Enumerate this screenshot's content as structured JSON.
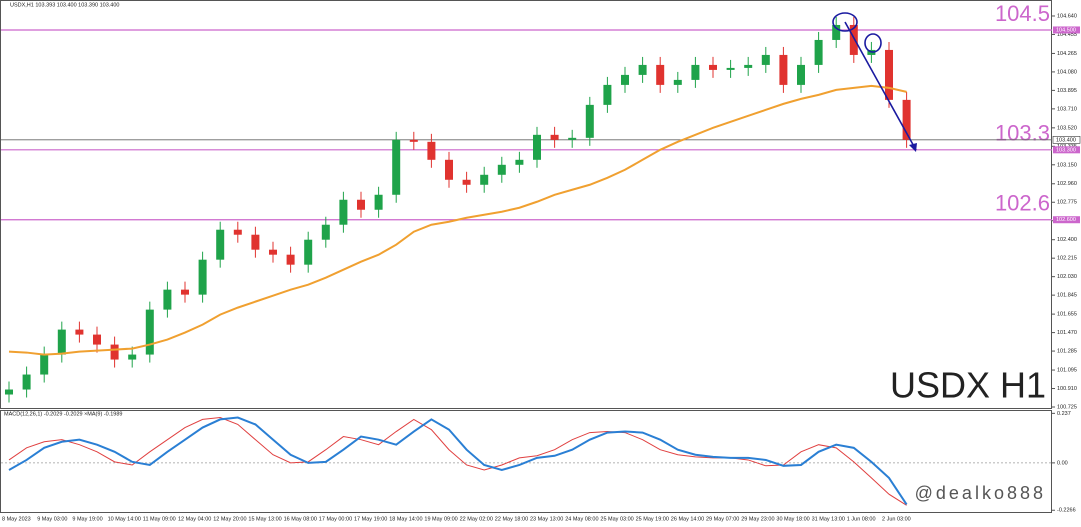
{
  "chart_data": [
    {
      "type": "candlestick",
      "title": "USDX,H1  103.393 103.400 103.390 103.400",
      "watermark": "USDX H1",
      "categories": [
        "8 May 2023",
        null,
        "9 May 03:00",
        null,
        "9 May 19:00",
        null,
        "10 May 14:00",
        null,
        "11 May 09:00",
        null,
        "12 May 04:00",
        null,
        "12 May 20:00",
        null,
        "15 May 13:00",
        null,
        "16 May 08:00",
        null,
        "17 May 00:00",
        null,
        "17 May 19:00",
        null,
        "18 May 14:00",
        null,
        "19 May 09:00",
        null,
        "22 May 02:00",
        null,
        "22 May 18:00",
        null,
        "23 May 13:00",
        null,
        "24 May 08:00",
        null,
        "25 May 03:00",
        null,
        "25 May 19:00",
        null,
        "26 May 14:00",
        null,
        "29 May 07:00",
        null,
        "29 May 23:00",
        null,
        "30 May 18:00",
        null,
        "31 May 13:00",
        null,
        "1 Jun 08:00",
        null,
        "2 Jun 03:00",
        null
      ],
      "open": [
        100.85,
        100.9,
        101.05,
        101.25,
        101.5,
        101.45,
        101.35,
        101.2,
        101.25,
        101.7,
        101.9,
        101.85,
        102.2,
        102.5,
        102.45,
        102.3,
        102.25,
        102.15,
        102.4,
        102.55,
        102.8,
        102.7,
        102.85,
        103.4,
        103.38,
        103.2,
        103.0,
        102.95,
        103.05,
        103.15,
        103.2,
        103.45,
        103.4,
        103.42,
        103.75,
        103.95,
        104.05,
        104.15,
        103.95,
        104.0,
        104.15,
        104.1,
        104.12,
        104.15,
        104.25,
        103.95,
        104.15,
        104.4,
        104.55,
        104.25,
        104.3,
        103.8
      ],
      "high": [
        100.98,
        101.13,
        101.33,
        101.58,
        101.58,
        101.53,
        101.43,
        101.33,
        101.78,
        101.98,
        101.98,
        102.28,
        102.58,
        102.58,
        102.53,
        102.38,
        102.33,
        102.48,
        102.63,
        102.88,
        102.88,
        102.93,
        103.48,
        103.48,
        103.46,
        103.28,
        103.08,
        103.13,
        103.23,
        103.28,
        103.53,
        103.53,
        103.5,
        103.83,
        104.03,
        104.13,
        104.23,
        104.23,
        104.08,
        104.23,
        104.23,
        104.2,
        104.23,
        104.33,
        104.33,
        104.23,
        104.48,
        104.63,
        104.63,
        104.38,
        104.38,
        103.88
      ],
      "low": [
        100.77,
        100.82,
        100.97,
        101.17,
        101.37,
        101.27,
        101.12,
        101.12,
        101.17,
        101.62,
        101.77,
        101.77,
        102.12,
        102.37,
        102.22,
        102.17,
        102.07,
        102.07,
        102.32,
        102.47,
        102.62,
        102.62,
        102.77,
        103.3,
        103.12,
        102.92,
        102.87,
        102.87,
        102.97,
        103.07,
        103.12,
        103.32,
        103.32,
        103.34,
        103.67,
        103.87,
        103.97,
        103.87,
        103.87,
        103.92,
        104.02,
        104.02,
        104.04,
        104.07,
        103.87,
        103.87,
        104.07,
        104.32,
        104.17,
        104.17,
        103.72,
        103.32
      ],
      "close": [
        100.9,
        101.05,
        101.25,
        101.5,
        101.45,
        101.35,
        101.2,
        101.25,
        101.7,
        101.9,
        101.85,
        102.2,
        102.5,
        102.45,
        102.3,
        102.25,
        102.15,
        102.4,
        102.55,
        102.8,
        102.7,
        102.85,
        103.4,
        103.38,
        103.2,
        103.0,
        102.95,
        103.05,
        103.15,
        103.2,
        103.45,
        103.4,
        103.42,
        103.75,
        103.95,
        104.05,
        104.15,
        103.95,
        104.0,
        104.15,
        104.1,
        104.12,
        104.15,
        104.25,
        103.95,
        104.15,
        104.4,
        104.55,
        104.25,
        104.3,
        103.8,
        103.4
      ],
      "up_color": "#1fa34a",
      "down_color": "#e0332f",
      "ma": {
        "color": "#f0a030",
        "values": [
          101.28,
          101.27,
          101.25,
          101.26,
          101.28,
          101.29,
          101.3,
          101.31,
          101.35,
          101.4,
          101.47,
          101.55,
          101.65,
          101.72,
          101.78,
          101.84,
          101.9,
          101.95,
          102.02,
          102.1,
          102.18,
          102.25,
          102.35,
          102.48,
          102.55,
          102.58,
          102.62,
          102.65,
          102.68,
          102.72,
          102.78,
          102.85,
          102.9,
          102.95,
          103.02,
          103.1,
          103.2,
          103.3,
          103.38,
          103.45,
          103.52,
          103.58,
          103.64,
          103.7,
          103.76,
          103.81,
          103.85,
          103.9,
          103.92,
          103.94,
          103.92,
          103.88
        ]
      },
      "levels": {
        "color": "#cc66cc",
        "values": [
          104.5,
          103.3,
          102.6
        ],
        "value_labels": [
          "104.500",
          "103.300",
          "102.600"
        ]
      },
      "last_price": {
        "value": 103.4,
        "label": "103.400"
      },
      "ylim": [
        100.715,
        104.8
      ],
      "yticks": [
        {
          "value": 104.64,
          "label": "104.640"
        },
        {
          "value": 104.455,
          "label": "104.455"
        },
        {
          "value": 104.265,
          "label": "104.265"
        },
        {
          "value": 104.08,
          "label": "104.080"
        },
        {
          "value": 103.895,
          "label": "103.895"
        },
        {
          "value": 103.71,
          "label": "103.710"
        },
        {
          "value": 103.52,
          "label": "103.520"
        },
        {
          "value": 103.335,
          "label": "103.335"
        },
        {
          "value": 103.15,
          "label": "103.150"
        },
        {
          "value": 102.96,
          "label": "102.960"
        },
        {
          "value": 102.775,
          "label": "102.775"
        },
        {
          "value": 102.59,
          "label": "102.590"
        },
        {
          "value": 102.4,
          "label": "102.400"
        },
        {
          "value": 102.215,
          "label": "102.215"
        },
        {
          "value": 102.03,
          "label": "102.030"
        },
        {
          "value": 101.845,
          "label": "101.845"
        },
        {
          "value": 101.655,
          "label": "101.655"
        },
        {
          "value": 101.47,
          "label": "101.470"
        },
        {
          "value": 101.285,
          "label": "101.285"
        },
        {
          "value": 101.095,
          "label": "101.095"
        },
        {
          "value": 100.91,
          "label": "100.910"
        },
        {
          "value": 100.725,
          "label": "100.725"
        }
      ]
    },
    {
      "type": "macd",
      "title": "MACD(12,26,1) -0.2029 -0.2029 ×MA(9) -0.1989",
      "handle": "@dealko888",
      "series": [
        {
          "color": "#e04040",
          "values": [
            0.014,
            0.072,
            0.101,
            0.111,
            0.087,
            0.053,
            0.005,
            -0.01,
            0.053,
            0.111,
            0.169,
            0.208,
            0.217,
            0.184,
            0.111,
            0.039,
            0.0,
            0.005,
            0.063,
            0.126,
            0.111,
            0.087,
            0.15,
            0.208,
            0.159,
            0.063,
            -0.01,
            -0.034,
            -0.01,
            0.024,
            0.034,
            0.063,
            0.111,
            0.145,
            0.15,
            0.145,
            0.111,
            0.063,
            0.039,
            0.029,
            0.024,
            0.024,
            0.014,
            -0.014,
            -0.01,
            0.053,
            0.087,
            0.072,
            0.005,
            -0.072,
            -0.15,
            -0.2029
          ]
        },
        {
          "color": "#2a7fd4",
          "values": [
            -0.034,
            0.014,
            0.072,
            0.101,
            0.111,
            0.087,
            0.053,
            0.005,
            -0.01,
            0.053,
            0.111,
            0.169,
            0.208,
            0.217,
            0.184,
            0.111,
            0.039,
            0.0,
            0.005,
            0.063,
            0.126,
            0.111,
            0.087,
            0.15,
            0.208,
            0.159,
            0.063,
            -0.01,
            -0.034,
            -0.01,
            0.024,
            0.034,
            0.063,
            0.111,
            0.145,
            0.15,
            0.145,
            0.111,
            0.063,
            0.039,
            0.029,
            0.024,
            0.024,
            0.014,
            -0.014,
            -0.01,
            0.053,
            0.087,
            0.072,
            0.005,
            -0.072,
            -0.1989
          ]
        }
      ],
      "ylim": [
        -0.235,
        0.253
      ],
      "yticks": [
        0.237,
        {
          "value": 0,
          "label": "0.00"
        },
        -0.2266
      ]
    }
  ]
}
